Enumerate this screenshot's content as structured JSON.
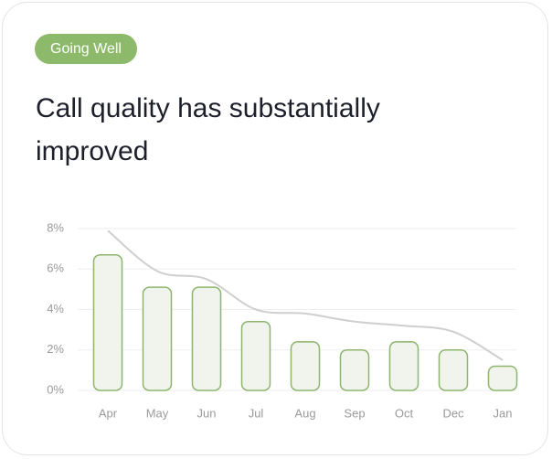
{
  "badge": "Going Well",
  "chart_data": {
    "type": "bar",
    "title": "Call quality has substantially improved",
    "categories": [
      "Apr",
      "May",
      "Jun",
      "Jul",
      "Aug",
      "Sep",
      "Oct",
      "Dec",
      "Jan"
    ],
    "series": [
      {
        "type": "bar",
        "color": "#8db56e",
        "values": [
          6.7,
          5.1,
          5.1,
          3.4,
          2.4,
          2.0,
          2.4,
          2.0,
          1.2
        ]
      },
      {
        "type": "line",
        "color": "#cfcfcf",
        "values": [
          7.9,
          5.9,
          5.5,
          4.0,
          3.8,
          3.4,
          3.2,
          2.9,
          1.5
        ]
      }
    ],
    "ylim": [
      0,
      8
    ],
    "yticks": [
      {
        "value": 0,
        "label": "0%"
      },
      {
        "value": 2,
        "label": "2%"
      },
      {
        "value": 4,
        "label": "4%"
      },
      {
        "value": 6,
        "label": "6%"
      },
      {
        "value": 8,
        "label": "8%"
      }
    ],
    "grid": true
  }
}
